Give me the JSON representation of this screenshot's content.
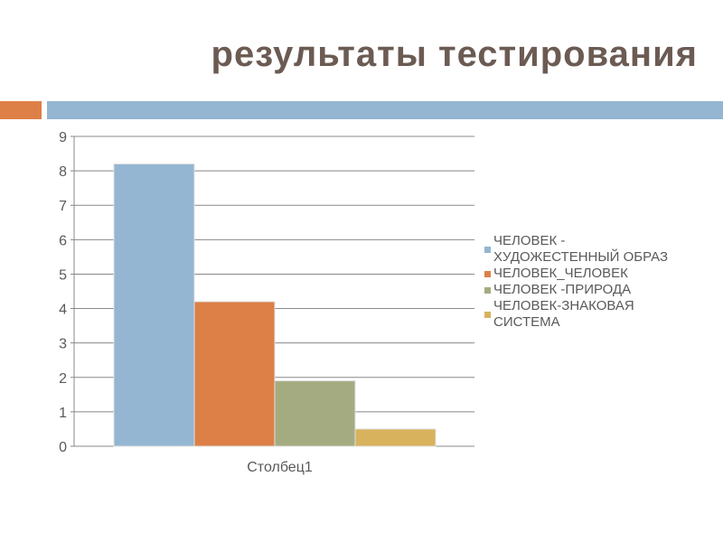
{
  "title": "результаты  тестирования",
  "colors": {
    "accent_orange": "#dd8047",
    "accent_blue": "#94b6d2"
  },
  "chart_data": {
    "type": "bar",
    "categories": [
      "Столбец1"
    ],
    "series": [
      {
        "name": "ЧЕЛОВЕК - ХУДОЖЕСТЕННЫЙ ОБРАЗ",
        "values": [
          8.2
        ],
        "color": "#94b6d2"
      },
      {
        "name": "ЧЕЛОВЕК_ЧЕЛОВЕК",
        "values": [
          4.2
        ],
        "color": "#dd8047"
      },
      {
        "name": "ЧЕЛОВЕК -ПРИРОДА",
        "values": [
          1.9
        ],
        "color": "#a5ab81"
      },
      {
        "name": "ЧЕЛОВЕК-ЗНАКОВАЯ СИСТЕМА",
        "values": [
          0.5
        ],
        "color": "#d8b25c"
      }
    ],
    "yticks": [
      "0",
      "1",
      "2",
      "3",
      "4",
      "5",
      "6",
      "7",
      "8",
      "9"
    ],
    "ylim": [
      0,
      9
    ],
    "grid": true,
    "legend_position": "right"
  }
}
